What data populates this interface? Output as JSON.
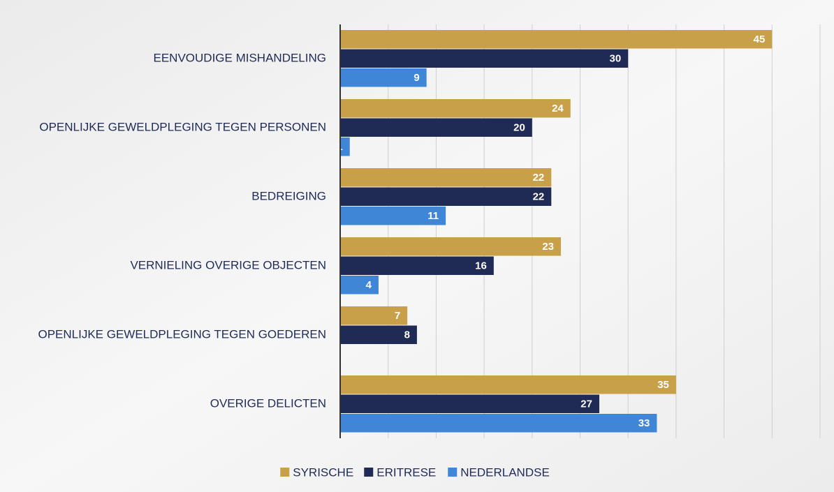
{
  "chart_data": {
    "type": "barh",
    "categories": [
      "EENVOUDIGE MISHANDELING",
      "OPENLIJKE GEWELDPLEGING TEGEN PERSONEN",
      "BEDREIGING",
      "VERNIELING OVERIGE OBJECTEN",
      "OPENLIJKE GEWELDPLEGING TEGEN GOEDEREN",
      "OVERIGE DELICTEN"
    ],
    "series": [
      {
        "name": "SYRISCHE",
        "color": "#c9a04a",
        "values": [
          45,
          24,
          22,
          23,
          7,
          35
        ]
      },
      {
        "name": "ERITRESE",
        "color": "#1f2a55",
        "values": [
          30,
          20,
          22,
          16,
          8,
          27
        ]
      },
      {
        "name": "NEDERLANDSE",
        "color": "#3f86d6",
        "values": [
          9,
          1,
          11,
          4,
          null,
          33
        ]
      }
    ],
    "xlim": [
      0,
      50
    ],
    "xticks": [
      0,
      5,
      10,
      15,
      20,
      25,
      30,
      35,
      40,
      45,
      50
    ],
    "grid": true,
    "legend": "bottom"
  }
}
